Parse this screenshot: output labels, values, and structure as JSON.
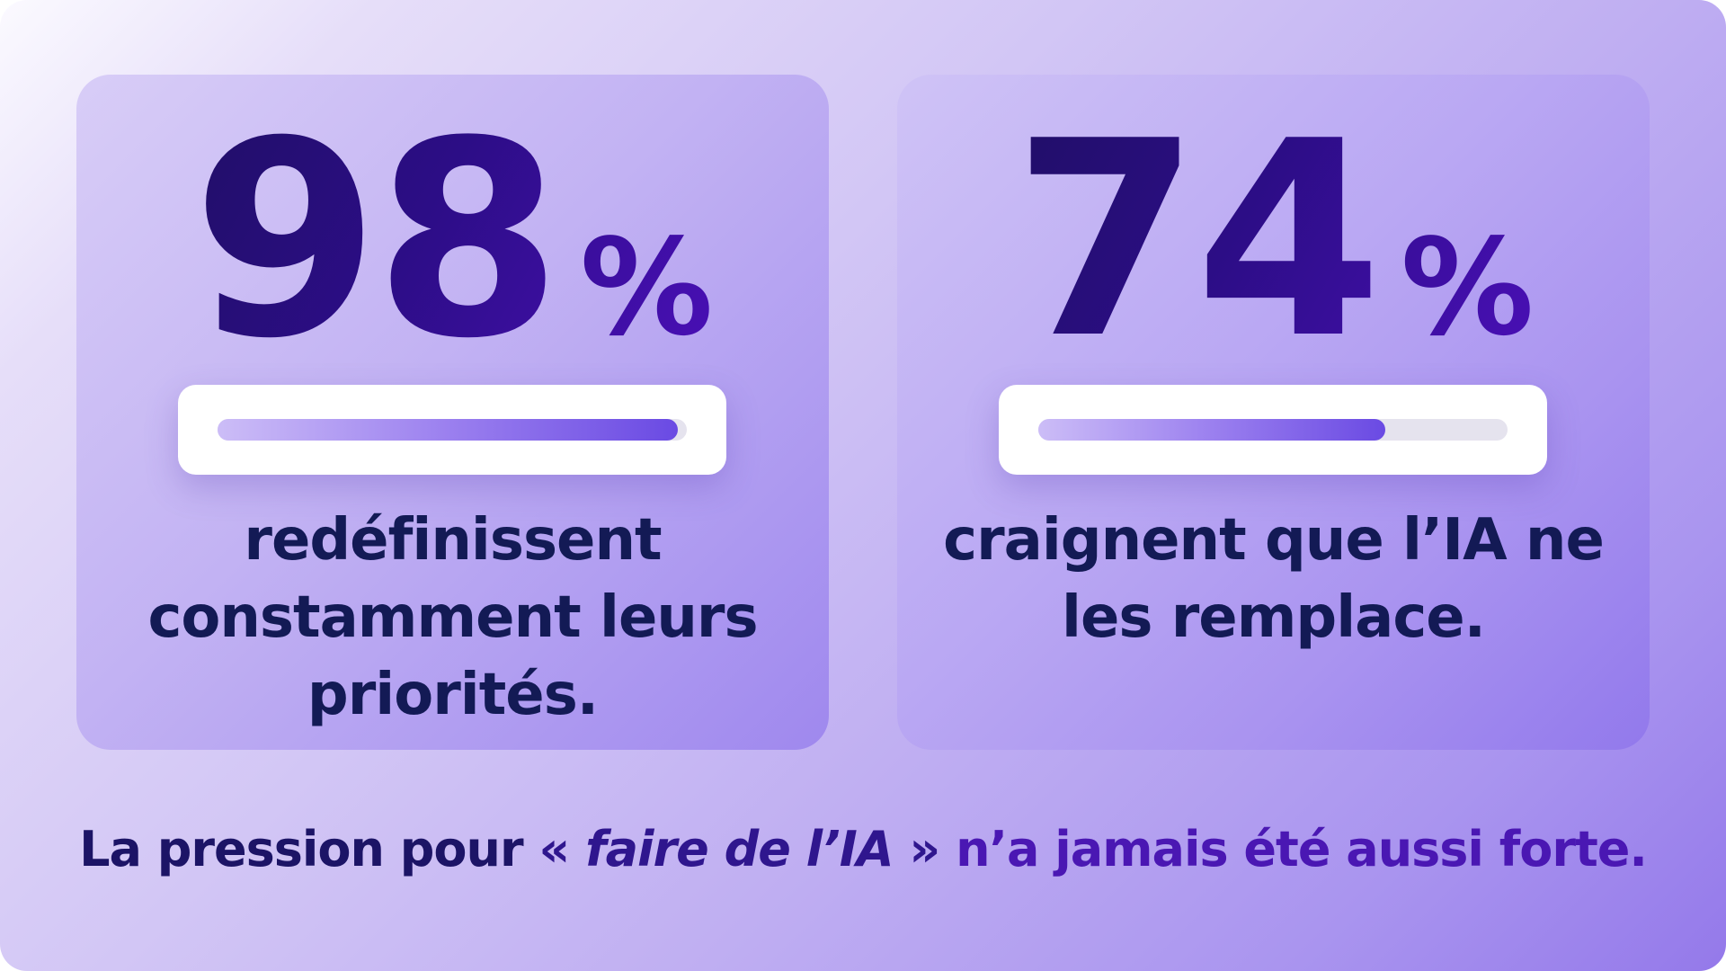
{
  "colors": {
    "stat_gradient_start": "#1c0f5c",
    "stat_gradient_end": "#5210c4",
    "text_dark": "#131a55",
    "bar_fill_end": "#6a4ae3",
    "bar_track": "#e5e3ee"
  },
  "stats": [
    {
      "value": "98",
      "unit": "%",
      "progress": 0.98,
      "description_lines": [
        "redéfinissent",
        "constamment leurs",
        "priorités."
      ]
    },
    {
      "value": "74",
      "unit": "%",
      "progress": 0.74,
      "description_lines": [
        "craignent que l’IA ne",
        "les remplace."
      ]
    }
  ],
  "tagline": {
    "start": "La pression pour ",
    "open_quote": "«",
    "emphasis": "faire de l’IA",
    "close_quote": "»",
    "end": " n’a jamais été aussi forte."
  }
}
